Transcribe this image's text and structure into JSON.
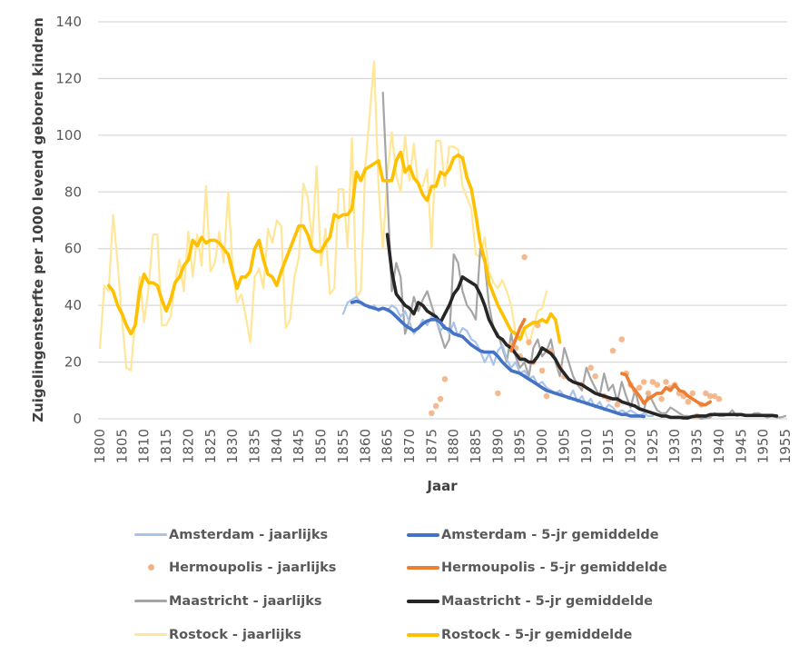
{
  "chart_data": {
    "type": "line",
    "title": "",
    "xlabel": "Jaar",
    "ylabel": "Zuigelingensterfte per 1000 levend geboren kindren",
    "xlim": [
      1800,
      1955
    ],
    "ylim": [
      0,
      140
    ],
    "yticks": [
      0,
      20,
      40,
      60,
      80,
      100,
      120,
      140
    ],
    "xticks": [
      1800,
      1805,
      1810,
      1815,
      1820,
      1825,
      1830,
      1835,
      1840,
      1845,
      1850,
      1855,
      1860,
      1865,
      1870,
      1875,
      1880,
      1885,
      1890,
      1895,
      1900,
      1905,
      1910,
      1915,
      1920,
      1925,
      1930,
      1935,
      1940,
      1945,
      1950,
      1955
    ],
    "grid": "horizontal",
    "legend_position": "bottom",
    "series": [
      {
        "name": "Amsterdam - jaarlijks",
        "kind": "line",
        "color": "#a9c4eb",
        "width": "thin",
        "start_year": 1855,
        "values": [
          37,
          41,
          42,
          43,
          41,
          40,
          39,
          40,
          38,
          39,
          38,
          40,
          39,
          36,
          38,
          34,
          30,
          32,
          35,
          33,
          36,
          35,
          31,
          33,
          30,
          34,
          29,
          32,
          31,
          28,
          27,
          24,
          20,
          23,
          19,
          24,
          26,
          21,
          18,
          20,
          16,
          17,
          14,
          15,
          12,
          13,
          11,
          10,
          9,
          10,
          8,
          7,
          10,
          6,
          8,
          5,
          7,
          4,
          6,
          3,
          5,
          4,
          2,
          3,
          2,
          3,
          2,
          1,
          2,
          1,
          1
        ]
      },
      {
        "name": "Amsterdam - 5-jr gemiddelde",
        "kind": "line",
        "color": "#4472c4",
        "width": "thick",
        "start_year": 1857,
        "values": [
          41,
          41.5,
          41,
          40,
          39.5,
          39,
          38.5,
          39,
          38.5,
          37.5,
          36,
          34.5,
          33,
          32,
          31,
          32,
          33.5,
          34.5,
          35,
          35,
          34,
          32,
          31.5,
          30,
          29.5,
          29,
          27.5,
          26,
          25,
          24,
          23.5,
          23.5,
          23.5,
          22,
          20,
          18.5,
          17,
          16.5,
          16,
          15,
          14,
          13,
          12,
          11,
          10,
          9.5,
          9,
          8.5,
          8,
          7.5,
          7,
          6.5,
          6,
          5.5,
          5,
          4.5,
          4,
          3.5,
          3,
          2.5,
          2,
          1.5,
          1.5,
          1,
          1,
          1,
          0.8
        ]
      },
      {
        "name": "Hermoupolis - jaarlijks",
        "kind": "scatter",
        "color": "#f4b183",
        "points": [
          [
            1875,
            2
          ],
          [
            1876,
            4.5
          ],
          [
            1877,
            7
          ],
          [
            1878,
            14
          ],
          [
            1890,
            9
          ],
          [
            1893,
            26
          ],
          [
            1894,
            25
          ],
          [
            1895,
            22
          ],
          [
            1896,
            57
          ],
          [
            1897,
            27
          ],
          [
            1898,
            20
          ],
          [
            1899,
            33
          ],
          [
            1900,
            17
          ],
          [
            1901,
            8
          ],
          [
            1902,
            24
          ],
          [
            1904,
            18
          ],
          [
            1905,
            15
          ],
          [
            1909,
            12
          ],
          [
            1911,
            18
          ],
          [
            1912,
            15
          ],
          [
            1914,
            8
          ],
          [
            1915,
            7
          ],
          [
            1916,
            24
          ],
          [
            1917,
            5
          ],
          [
            1918,
            28
          ],
          [
            1919,
            16
          ],
          [
            1920,
            12
          ],
          [
            1921,
            10
          ],
          [
            1922,
            11
          ],
          [
            1923,
            13
          ],
          [
            1924,
            9
          ],
          [
            1925,
            13
          ],
          [
            1926,
            12
          ],
          [
            1927,
            7
          ],
          [
            1928,
            13
          ],
          [
            1929,
            11
          ],
          [
            1930,
            12
          ],
          [
            1931,
            9
          ],
          [
            1932,
            8
          ],
          [
            1933,
            6
          ],
          [
            1934,
            9
          ],
          [
            1935,
            1
          ],
          [
            1936,
            5
          ],
          [
            1937,
            9
          ],
          [
            1938,
            8
          ],
          [
            1939,
            8
          ],
          [
            1940,
            7
          ]
        ]
      },
      {
        "name": "Hermoupolis - 5-jr gemiddelde",
        "kind": "line",
        "color": "#ed7d31",
        "width": "thick",
        "segments": [
          {
            "start_year": 1893,
            "values": [
              24,
              28,
              32,
              35
            ]
          },
          {
            "start_year": 1918,
            "values": [
              16,
              15.5,
              12,
              10,
              8,
              5.5,
              7,
              8,
              9,
              9,
              11,
              10,
              12,
              10,
              9.5,
              8,
              7,
              6,
              5,
              5,
              6
            ]
          }
        ]
      },
      {
        "name": "Maastricht - jaarlijks",
        "kind": "line",
        "color": "#a5a5a5",
        "width": "thin",
        "start_year": 1864,
        "values": [
          115,
          80,
          45,
          55,
          50,
          30,
          35,
          43,
          38,
          42,
          45,
          40,
          35,
          30,
          25,
          28,
          58,
          55,
          45,
          40,
          38,
          35,
          60,
          55,
          40,
          32,
          30,
          25,
          20,
          30,
          22,
          18,
          20,
          15,
          25,
          28,
          22,
          24,
          28,
          20,
          15,
          25,
          20,
          15,
          12,
          10,
          18,
          14,
          11,
          8,
          16,
          10,
          12,
          6,
          13,
          8,
          4,
          10,
          4,
          3,
          9,
          6,
          3,
          2,
          2,
          4,
          3,
          2,
          1,
          1,
          0.5,
          0.5,
          0,
          0.3,
          0.5,
          2,
          1,
          1,
          1.5,
          3,
          1,
          1.5,
          1,
          1,
          2,
          2,
          1,
          0.5,
          1,
          0.5,
          0.5,
          1
        ]
      },
      {
        "name": "Maastricht - 5-jr gemiddelde",
        "kind": "line",
        "color": "#262626",
        "width": "thick",
        "start_year": 1865,
        "values": [
          65,
          52,
          44,
          42,
          40,
          39,
          37,
          41,
          40,
          38,
          37,
          36,
          34,
          37,
          40,
          44,
          46,
          50,
          49,
          48,
          47,
          44,
          40,
          35,
          32,
          29,
          28,
          26,
          25,
          23,
          21,
          21,
          20,
          20,
          22,
          25,
          24,
          23,
          21,
          18,
          16,
          14,
          13,
          12.5,
          12,
          11,
          10,
          9,
          8.5,
          8,
          7.5,
          7,
          7,
          6,
          5.5,
          5,
          4.5,
          3.5,
          3,
          2.5,
          2,
          1.5,
          1,
          1,
          0.5,
          0.5,
          0.5,
          0.3,
          0.3,
          0.8,
          1,
          1,
          1,
          1.5,
          1.5,
          1.5,
          1.5,
          1.5,
          1.5,
          1.5,
          1.5,
          1.2,
          1.2,
          1.2,
          1.2,
          1.2,
          1.2,
          1.2,
          1
        ]
      },
      {
        "name": "Rostock - jaarlijks",
        "kind": "line",
        "color": "#ffe699",
        "width": "thin",
        "start_year": 1800,
        "values": [
          25,
          47,
          45,
          72,
          55,
          35,
          18,
          17,
          35,
          50,
          34,
          46,
          65,
          65,
          33,
          33,
          36,
          48,
          56,
          45,
          66,
          50,
          65,
          54,
          82,
          52,
          55,
          66,
          55,
          80,
          54,
          41,
          44,
          36,
          27,
          50,
          53,
          46,
          67,
          62,
          70,
          68,
          32,
          35,
          50,
          57,
          83,
          78,
          62,
          89,
          54,
          67,
          44,
          46,
          81,
          81,
          60,
          99,
          43,
          45,
          89,
          107,
          126,
          82,
          60,
          86,
          101,
          86,
          80,
          100,
          84,
          97,
          82,
          82,
          88,
          60,
          98,
          98,
          82,
          96,
          96,
          95,
          82,
          78,
          74,
          58,
          57,
          64,
          52,
          48,
          46,
          49,
          45,
          40,
          30,
          28,
          32,
          26,
          32,
          38,
          39,
          45
        ]
      },
      {
        "name": "Rostock - 5-jr gemiddelde",
        "kind": "line",
        "color": "#ffc000",
        "width": "thick",
        "start_year": 1802,
        "values": [
          47,
          45,
          40,
          37,
          33,
          30,
          33,
          45,
          51,
          48,
          48,
          47,
          42,
          38,
          42,
          48,
          50,
          54,
          56,
          63,
          61,
          64,
          62,
          63,
          63,
          62,
          60,
          58,
          52,
          46,
          50,
          50,
          52,
          60,
          63,
          56,
          51,
          50,
          47,
          52,
          56,
          60,
          64,
          68,
          68,
          65,
          60,
          59,
          59,
          62,
          64,
          72,
          71,
          72,
          72,
          74,
          87,
          84,
          88,
          89,
          90,
          91,
          84,
          84,
          84,
          91,
          94,
          87,
          89,
          85,
          83,
          79,
          77,
          82,
          82,
          87,
          86,
          88,
          92,
          93,
          92,
          85,
          81,
          72,
          62,
          56,
          48,
          44,
          40,
          37,
          34,
          31,
          30,
          28,
          32,
          33,
          34,
          34,
          35,
          34,
          37,
          35,
          27
        ]
      }
    ]
  },
  "legend": {
    "items": [
      {
        "label": "Amsterdam - jaarlijks"
      },
      {
        "label": "Amsterdam - 5-jr gemiddelde"
      },
      {
        "label": "Hermoupolis - jaarlijks"
      },
      {
        "label": "Hermoupolis - 5-jr gemiddelde"
      },
      {
        "label": "Maastricht - jaarlijks"
      },
      {
        "label": "Maastricht - 5-jr gemiddelde"
      },
      {
        "label": "Rostock - jaarlijks"
      },
      {
        "label": "Rostock - 5-jr gemiddelde"
      }
    ]
  }
}
